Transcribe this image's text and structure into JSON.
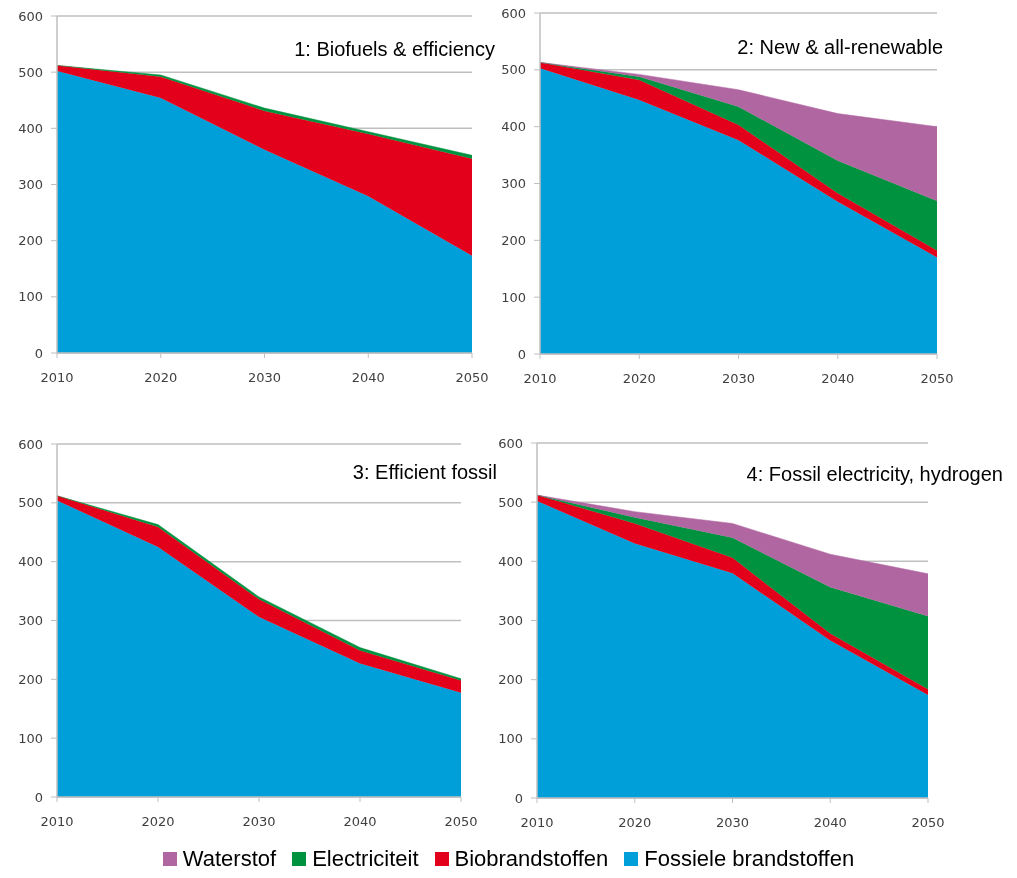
{
  "chart_data": [
    {
      "type": "area",
      "title": "1: Biofuels & efficiency",
      "x": [
        2010,
        2020,
        2030,
        2040,
        2050
      ],
      "stacked": true,
      "xlim": [
        2010,
        2050
      ],
      "xticks": [
        2010,
        2020,
        2030,
        2040,
        2050
      ],
      "ylim": [
        0,
        600
      ],
      "yticks": [
        0,
        100,
        200,
        300,
        400,
        500,
        600
      ],
      "grid": "y",
      "series": [
        {
          "color": "#009fda",
          "values": [
            502,
            454,
            362,
            279,
            173
          ]
        },
        {
          "color": "#e2001a",
          "values": [
            10,
            38,
            69,
            111,
            173
          ]
        },
        {
          "color": "#00923f",
          "values": [
            0,
            3,
            5,
            4,
            6
          ]
        }
      ]
    },
    {
      "type": "area",
      "title": "2: New & all-renewable",
      "x": [
        2010,
        2020,
        2030,
        2040,
        2050
      ],
      "stacked": true,
      "xlim": [
        2010,
        2050
      ],
      "xticks": [
        2010,
        2020,
        2030,
        2040,
        2050
      ],
      "ylim": [
        0,
        600
      ],
      "yticks": [
        0,
        100,
        200,
        300,
        400,
        500,
        600
      ],
      "grid": "y",
      "series": [
        {
          "color": "#009fda",
          "values": [
            503,
            447,
            376,
            268,
            170
          ]
        },
        {
          "color": "#e2001a",
          "values": [
            10,
            35,
            27,
            15,
            12
          ]
        },
        {
          "color": "#00923f",
          "values": [
            0,
            6,
            32,
            57,
            87
          ]
        },
        {
          "color": "#b066a0",
          "values": [
            0,
            4,
            30,
            83,
            131
          ]
        }
      ]
    },
    {
      "type": "area",
      "title": "3: Efficient fossil",
      "x": [
        2010,
        2020,
        2030,
        2040,
        2050
      ],
      "stacked": true,
      "xlim": [
        2010,
        2050
      ],
      "xticks": [
        2010,
        2020,
        2030,
        2040,
        2050
      ],
      "ylim": [
        0,
        600
      ],
      "yticks": [
        0,
        100,
        200,
        300,
        400,
        500,
        600
      ],
      "grid": "y",
      "series": [
        {
          "color": "#009fda",
          "values": [
            504,
            425,
            306,
            227,
            177
          ]
        },
        {
          "color": "#e2001a",
          "values": [
            8,
            34,
            30,
            22,
            21
          ]
        },
        {
          "color": "#00923f",
          "values": [
            0,
            4,
            4,
            5,
            3
          ]
        }
      ]
    },
    {
      "type": "area",
      "title": "4: Fossil electricity, hydrogen",
      "x": [
        2010,
        2020,
        2030,
        2040,
        2050
      ],
      "stacked": true,
      "xlim": [
        2010,
        2050
      ],
      "xticks": [
        2010,
        2020,
        2030,
        2040,
        2050
      ],
      "ylim": [
        0,
        600
      ],
      "yticks": [
        0,
        100,
        200,
        300,
        400,
        500,
        600
      ],
      "grid": "y",
      "legend": "bottom",
      "series": [
        {
          "name": "Fossiele brandstoffen",
          "color": "#009fda",
          "values": [
            502,
            430,
            380,
            266,
            174
          ]
        },
        {
          "name": "Biobrandstoffen",
          "color": "#e2001a",
          "values": [
            10,
            34,
            26,
            12,
            10
          ]
        },
        {
          "name": "Electriciteit",
          "color": "#00923f",
          "values": [
            0,
            10,
            34,
            78,
            123
          ]
        },
        {
          "name": "Waterstof",
          "color": "#b066a0",
          "values": [
            0,
            10,
            24,
            56,
            72
          ]
        }
      ]
    }
  ]
}
